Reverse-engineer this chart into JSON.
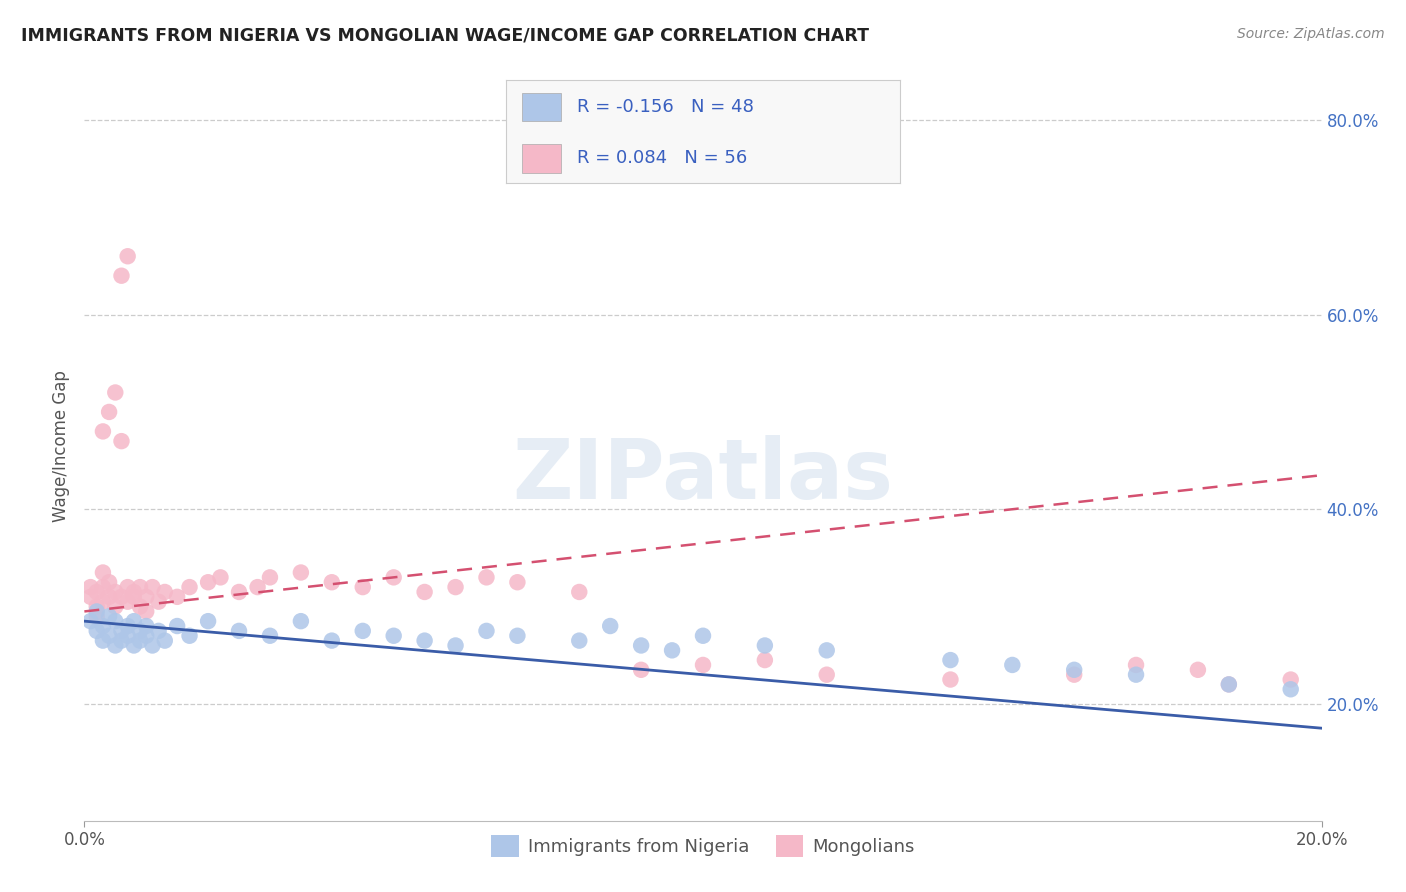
{
  "title": "IMMIGRANTS FROM NIGERIA VS MONGOLIAN WAGE/INCOME GAP CORRELATION CHART",
  "source": "Source: ZipAtlas.com",
  "ylabel": "Wage/Income Gap",
  "xlim": [
    0.0,
    0.2
  ],
  "ylim": [
    0.08,
    0.85
  ],
  "yticks_right": [
    0.2,
    0.4,
    0.6,
    0.8
  ],
  "ytick_labels_right": [
    "20.0%",
    "40.0%",
    "60.0%",
    "80.0%"
  ],
  "nigeria_R": -0.156,
  "nigeria_N": 48,
  "mongolian_R": 0.084,
  "mongolian_N": 56,
  "nigeria_color": "#aec6e8",
  "mongolian_color": "#f5b8c8",
  "nigeria_line_color": "#3a5ca8",
  "mongolian_line_color": "#d45070",
  "watermark": "ZIPatlas",
  "legend_label_1": "Immigrants from Nigeria",
  "legend_label_2": "Mongolians",
  "nigeria_x": [
    0.001,
    0.002,
    0.002,
    0.003,
    0.003,
    0.004,
    0.004,
    0.005,
    0.005,
    0.006,
    0.006,
    0.007,
    0.007,
    0.008,
    0.008,
    0.009,
    0.009,
    0.01,
    0.01,
    0.011,
    0.012,
    0.013,
    0.015,
    0.017,
    0.02,
    0.025,
    0.03,
    0.035,
    0.04,
    0.045,
    0.05,
    0.055,
    0.06,
    0.065,
    0.07,
    0.08,
    0.085,
    0.09,
    0.095,
    0.1,
    0.11,
    0.12,
    0.14,
    0.15,
    0.16,
    0.17,
    0.185,
    0.195
  ],
  "nigeria_y": [
    0.285,
    0.275,
    0.295,
    0.265,
    0.28,
    0.27,
    0.29,
    0.26,
    0.285,
    0.275,
    0.265,
    0.28,
    0.27,
    0.285,
    0.26,
    0.275,
    0.265,
    0.28,
    0.27,
    0.26,
    0.275,
    0.265,
    0.28,
    0.27,
    0.285,
    0.275,
    0.27,
    0.285,
    0.265,
    0.275,
    0.27,
    0.265,
    0.26,
    0.275,
    0.27,
    0.265,
    0.28,
    0.26,
    0.255,
    0.27,
    0.26,
    0.255,
    0.245,
    0.24,
    0.235,
    0.23,
    0.22,
    0.215
  ],
  "mongolian_x": [
    0.001,
    0.001,
    0.002,
    0.002,
    0.002,
    0.003,
    0.003,
    0.003,
    0.003,
    0.004,
    0.004,
    0.004,
    0.005,
    0.005,
    0.005,
    0.006,
    0.006,
    0.006,
    0.007,
    0.007,
    0.007,
    0.008,
    0.008,
    0.009,
    0.009,
    0.01,
    0.01,
    0.011,
    0.012,
    0.013,
    0.015,
    0.017,
    0.02,
    0.022,
    0.025,
    0.028,
    0.03,
    0.035,
    0.04,
    0.045,
    0.05,
    0.055,
    0.06,
    0.065,
    0.07,
    0.08,
    0.09,
    0.1,
    0.11,
    0.12,
    0.14,
    0.16,
    0.17,
    0.18,
    0.185,
    0.195
  ],
  "mongolian_y": [
    0.31,
    0.32,
    0.3,
    0.315,
    0.29,
    0.305,
    0.32,
    0.335,
    0.48,
    0.31,
    0.325,
    0.5,
    0.3,
    0.315,
    0.52,
    0.31,
    0.47,
    0.64,
    0.305,
    0.32,
    0.66,
    0.31,
    0.315,
    0.3,
    0.32,
    0.295,
    0.31,
    0.32,
    0.305,
    0.315,
    0.31,
    0.32,
    0.325,
    0.33,
    0.315,
    0.32,
    0.33,
    0.335,
    0.325,
    0.32,
    0.33,
    0.315,
    0.32,
    0.33,
    0.325,
    0.315,
    0.235,
    0.24,
    0.245,
    0.23,
    0.225,
    0.23,
    0.24,
    0.235,
    0.22,
    0.225
  ]
}
